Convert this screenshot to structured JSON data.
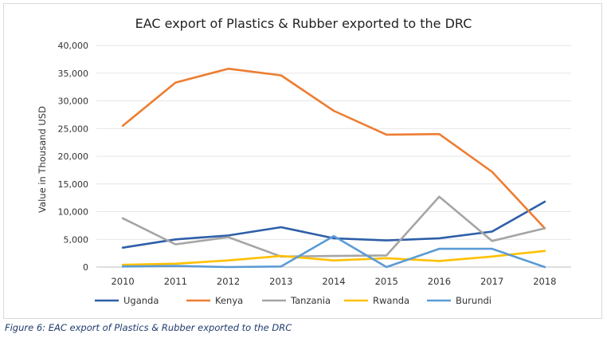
{
  "caption": "Figure 6: EAC export of Plastics & Rubber exported to the DRC",
  "chart_data": {
    "type": "line",
    "title": "EAC export of Plastics & Rubber exported to the DRC",
    "ylabel": "Value in Thousand USD",
    "xlabel": "",
    "ylim": [
      0,
      40000
    ],
    "yticks": [
      0,
      5000,
      10000,
      15000,
      20000,
      25000,
      30000,
      35000,
      40000
    ],
    "ytick_labels": [
      "0",
      "5,000",
      "10,000",
      "15,000",
      "20,000",
      "25,000",
      "30,000",
      "35,000",
      "40,000"
    ],
    "categories": [
      "2010",
      "2011",
      "2012",
      "2013",
      "2014",
      "2015",
      "2016",
      "2017",
      "2018"
    ],
    "grid": "horizontal",
    "legend": "bottom",
    "series": [
      {
        "name": "Uganda",
        "color": "#2e5fa8",
        "values": [
          3500,
          5000,
          5700,
          7200,
          5200,
          4800,
          5200,
          6400,
          11800
        ]
      },
      {
        "name": "Kenya",
        "color": "#ed7d31",
        "values": [
          25500,
          33300,
          35800,
          34600,
          28200,
          23900,
          24000,
          17200,
          7000
        ]
      },
      {
        "name": "Tanzania",
        "color": "#a5a5a5",
        "values": [
          8800,
          4100,
          5400,
          1900,
          2000,
          2100,
          12700,
          4700,
          7000
        ]
      },
      {
        "name": "Rwanda",
        "color": "#ffc000",
        "values": [
          400,
          600,
          1200,
          2000,
          1200,
          1600,
          1100,
          1900,
          2900
        ]
      },
      {
        "name": "Burundi",
        "color": "#5b9bd5",
        "values": [
          100,
          200,
          0,
          100,
          5600,
          0,
          3300,
          3300,
          0
        ]
      }
    ]
  }
}
